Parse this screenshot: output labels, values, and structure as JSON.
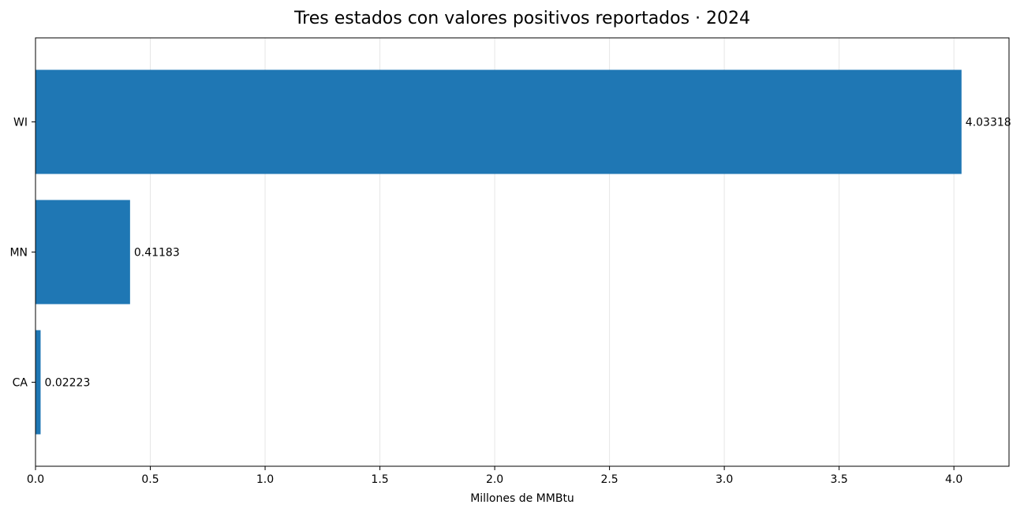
{
  "chart_data": {
    "type": "bar",
    "orientation": "horizontal",
    "title": "Tres estados con valores positivos reportados · 2024",
    "xlabel": "Millones de MMBtu",
    "ylabel": "",
    "categories": [
      "CA",
      "MN",
      "WI"
    ],
    "values": [
      0.02223,
      0.41183,
      4.03318
    ],
    "value_labels": [
      "0.02223",
      "0.41183",
      "4.03318"
    ],
    "xlim": [
      0,
      4.24
    ],
    "xticks": [
      0,
      0.5,
      1.0,
      1.5,
      2.0,
      2.5,
      3.0,
      3.5,
      4.0
    ],
    "xtick_labels": [
      "0.0",
      "0.5",
      "1.0",
      "1.5",
      "2.0",
      "2.5",
      "3.0",
      "3.5",
      "4.0"
    ],
    "grid": "vertical",
    "bar_color": "#1f77b4",
    "grid_color": "#e6e6e6"
  }
}
